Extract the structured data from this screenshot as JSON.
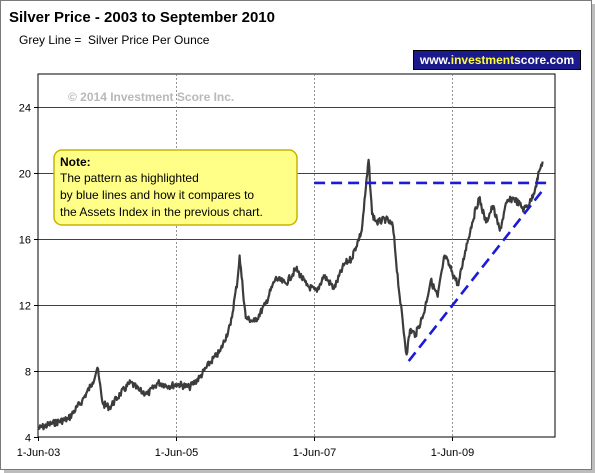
{
  "title": "Silver Price - 2003 to September 2010",
  "subtitle": "Grey Line =  Silver Price Per Ounce",
  "brand": {
    "prefix": "www.",
    "highlight": "investment",
    "suffix": "score.com"
  },
  "watermark": "© 2014 Investment Score Inc.",
  "note": {
    "heading": "Note:",
    "lines": [
      "The pattern as highlighted",
      "by blue lines and how it compares to",
      "the Assets Index in the previous chart."
    ]
  },
  "colors": {
    "price_line": "#3c3c3c",
    "trend_line": "#1c1cd8",
    "note_bg": "#ffff88",
    "note_border": "#c8b400",
    "brand_bg": "#1a1a8c"
  },
  "chart_data": {
    "type": "line",
    "x_format": "year-fraction",
    "xlim": [
      2003.41,
      2010.9
    ],
    "ylim": [
      4,
      26
    ],
    "y_ticks": [
      4,
      8,
      12,
      16,
      20,
      24
    ],
    "x_ticks": [
      {
        "x": 2003.41,
        "label": "1-Jun-03"
      },
      {
        "x": 2005.41,
        "label": "1-Jun-05"
      },
      {
        "x": 2007.41,
        "label": "1-Jun-07"
      },
      {
        "x": 2009.41,
        "label": "1-Jun-09"
      }
    ],
    "grid": {
      "horizontal": true,
      "vertical_dashed": true
    },
    "series": [
      {
        "type": "price",
        "x": [
          2003.41,
          2003.6,
          2003.85,
          2004.05,
          2004.2,
          2004.27,
          2004.35,
          2004.45,
          2004.6,
          2004.75,
          2004.88,
          2005.0,
          2005.15,
          2005.3,
          2005.45,
          2005.6,
          2005.75,
          2005.9,
          2006.05,
          2006.2,
          2006.3,
          2006.33,
          2006.42,
          2006.55,
          2006.7,
          2006.85,
          2007.0,
          2007.15,
          2007.3,
          2007.45,
          2007.55,
          2007.7,
          2007.85,
          2007.95,
          2008.1,
          2008.2,
          2008.25,
          2008.32,
          2008.45,
          2008.55,
          2008.65,
          2008.75,
          2008.8,
          2008.88,
          2009.0,
          2009.1,
          2009.2,
          2009.3,
          2009.41,
          2009.5,
          2009.6,
          2009.7,
          2009.8,
          2009.9,
          2010.0,
          2010.1,
          2010.2,
          2010.3,
          2010.45,
          2010.55,
          2010.62,
          2010.68,
          2010.72
        ],
        "y": [
          4.5,
          4.8,
          5.1,
          6.2,
          7.3,
          8.2,
          6.0,
          5.8,
          6.6,
          7.3,
          6.8,
          6.6,
          7.3,
          7.1,
          7.2,
          7.0,
          7.6,
          8.5,
          9.2,
          10.8,
          13.5,
          15.0,
          11.2,
          11.0,
          12.0,
          13.6,
          13.3,
          14.2,
          13.2,
          12.8,
          13.8,
          13.0,
          14.5,
          14.8,
          16.5,
          20.8,
          17.5,
          17.0,
          17.2,
          16.8,
          12.5,
          9.0,
          10.5,
          10.2,
          11.5,
          13.5,
          12.5,
          15.0,
          14.0,
          13.2,
          15.3,
          17.0,
          18.5,
          17.0,
          18.0,
          16.5,
          18.2,
          18.5,
          17.8,
          18.3,
          19.2,
          20.2,
          20.7
        ]
      },
      {
        "type": "trend",
        "x": [
          2007.41,
          2010.78
        ],
        "y": [
          19.4,
          19.4
        ]
      },
      {
        "type": "trend",
        "x": [
          2008.78,
          2010.75
        ],
        "y": [
          8.6,
          19.1
        ]
      }
    ]
  }
}
